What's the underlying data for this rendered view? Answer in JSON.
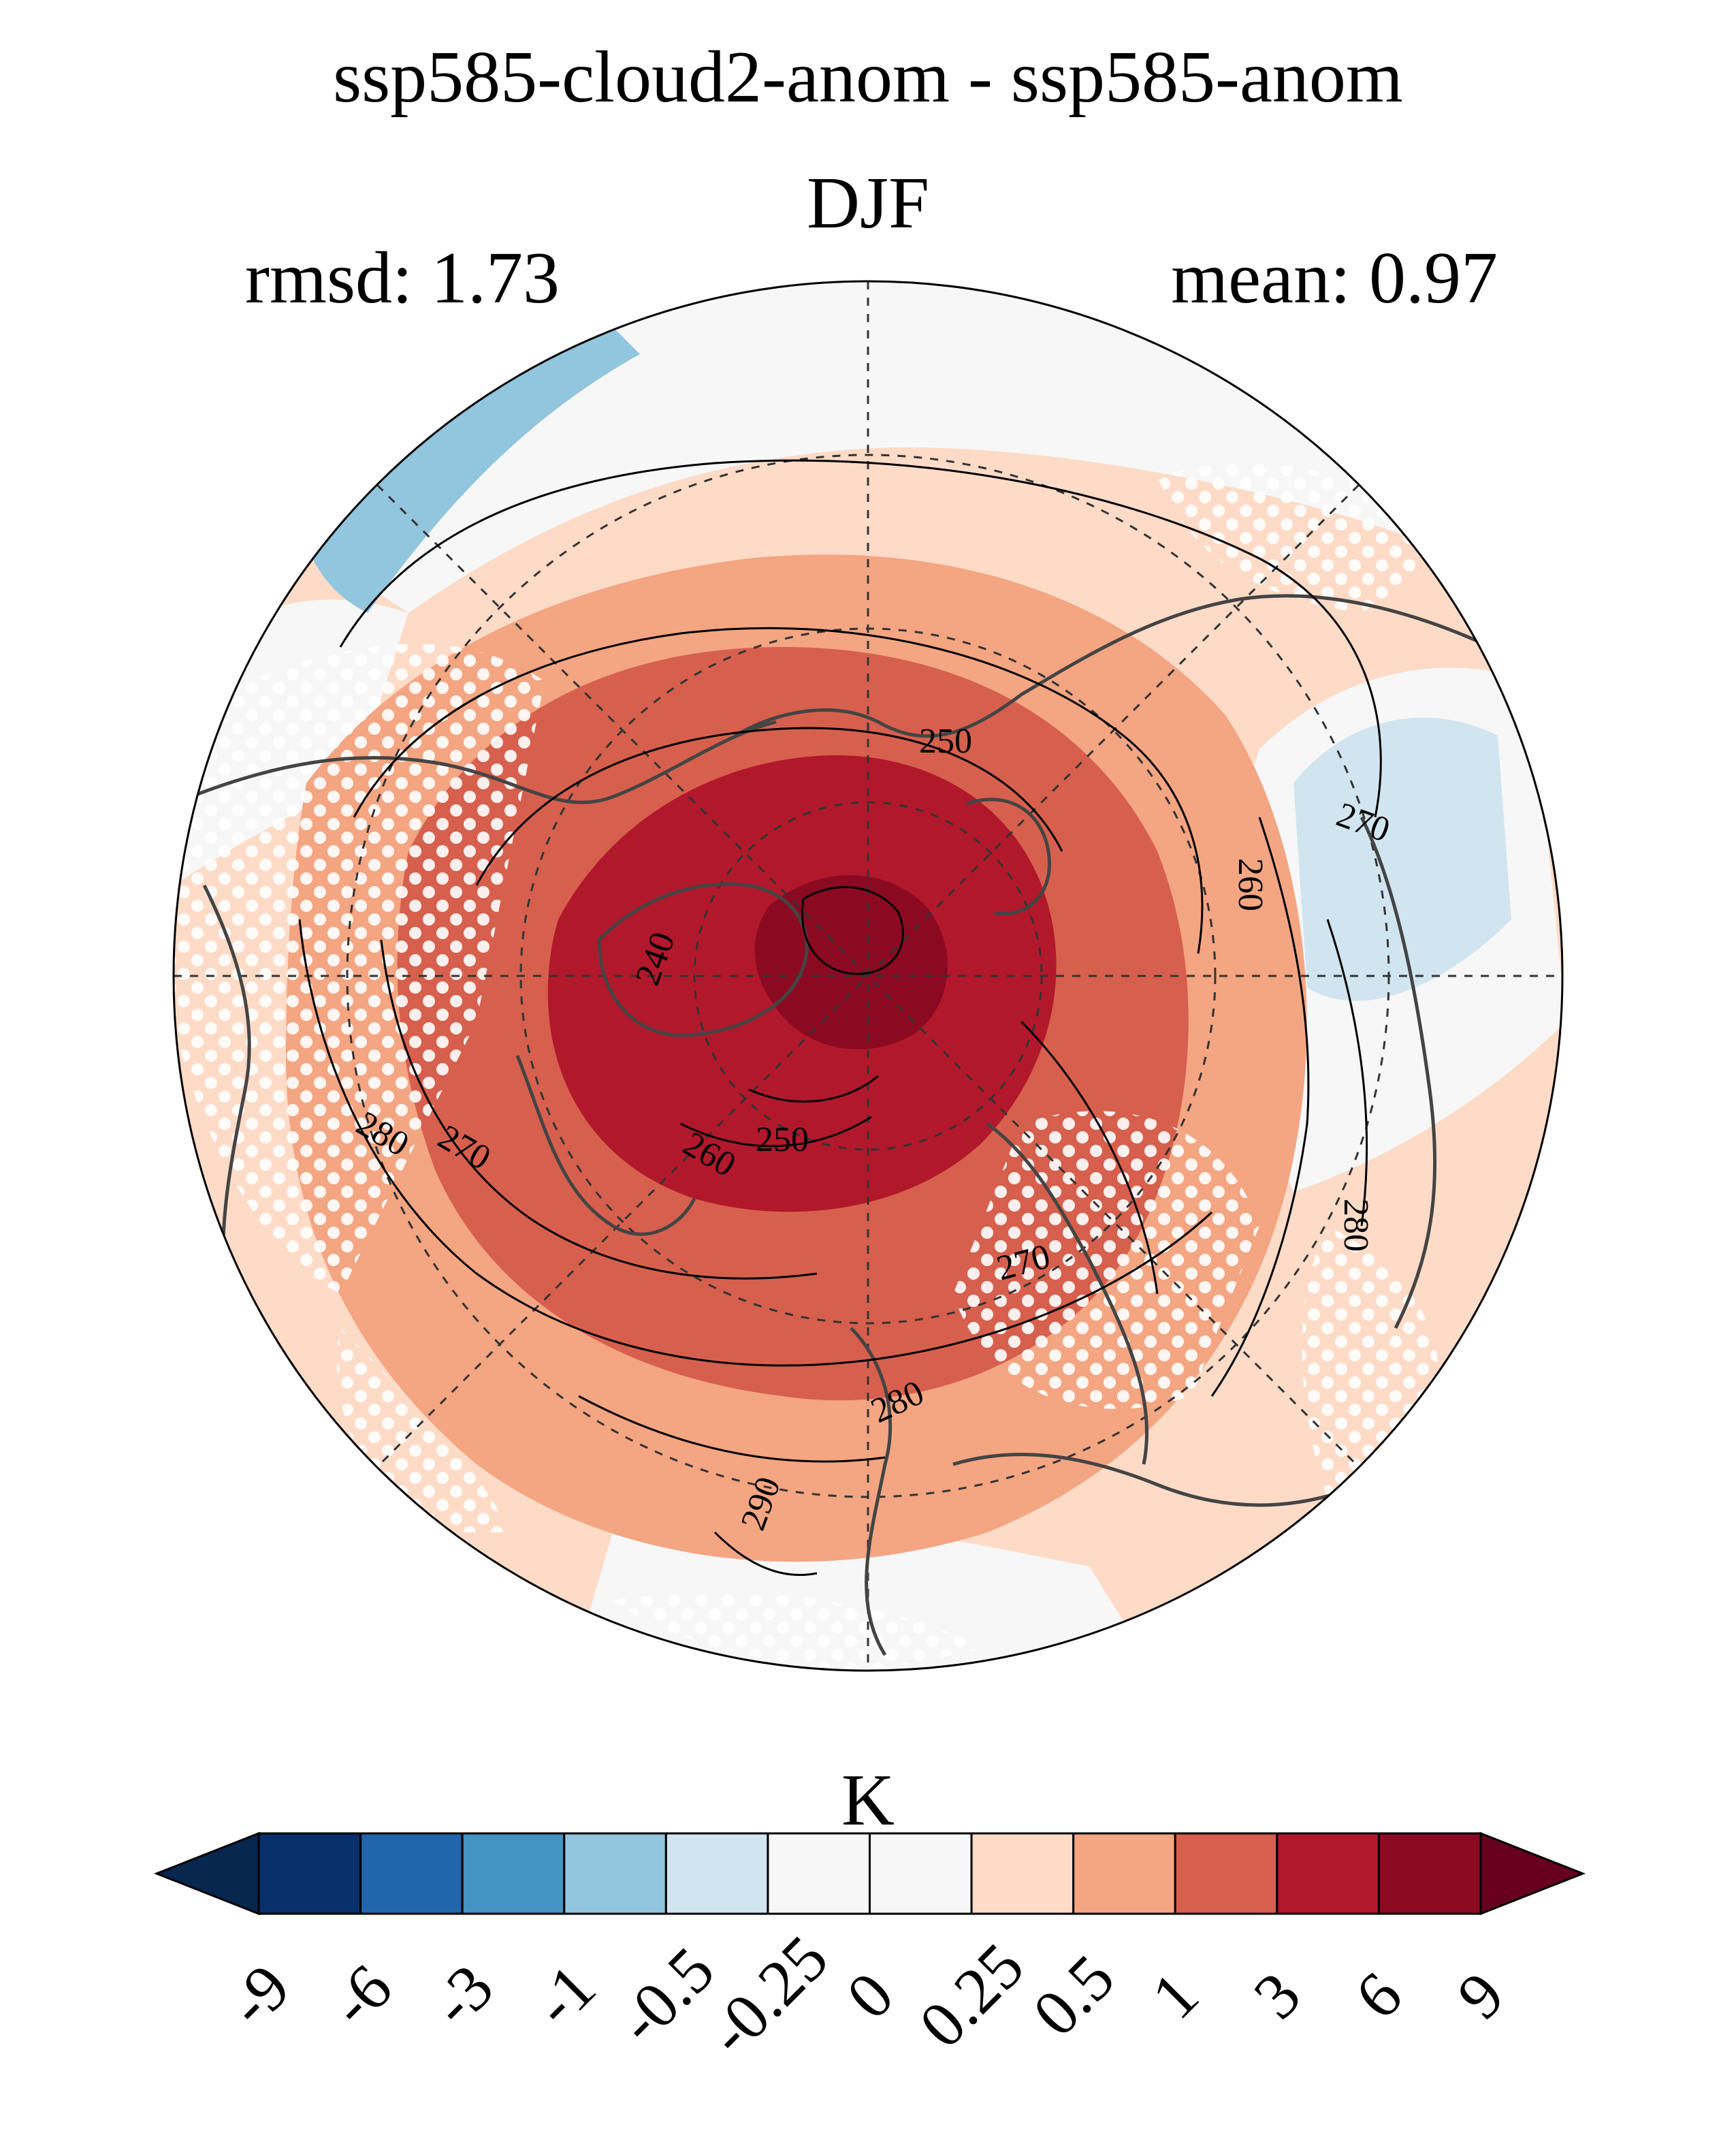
{
  "title": {
    "line1": "ssp585-cloud2-anom - ssp585-anom",
    "line2": "DJF"
  },
  "stats": {
    "rmsd": "rmsd: 1.73",
    "mean": "mean: 0.97"
  },
  "map": {
    "projection": "north-polar-stereographic",
    "contour_labels": [
      {
        "id": "c250a",
        "text": "250"
      },
      {
        "id": "c260a",
        "text": "260"
      },
      {
        "id": "c270a",
        "text": "270"
      },
      {
        "id": "c240",
        "text": "240"
      },
      {
        "id": "c280a",
        "text": "280"
      },
      {
        "id": "c270b",
        "text": "270"
      },
      {
        "id": "c260b",
        "text": "260"
      },
      {
        "id": "c250b",
        "text": "250"
      },
      {
        "id": "c280b",
        "text": "280"
      },
      {
        "id": "c270c",
        "text": "270"
      },
      {
        "id": "c280c",
        "text": "280"
      },
      {
        "id": "c290",
        "text": "290"
      }
    ],
    "stippling": "white dots mark non-significant areas"
  },
  "colorbar": {
    "unit": "K",
    "ticks": [
      "-9",
      "-6",
      "-3",
      "-1",
      "-0.5",
      "-0.25",
      "0",
      "0.25",
      "0.5",
      "1",
      "3",
      "6",
      "9"
    ],
    "colors": [
      "#08274f",
      "#08306b",
      "#2166ac",
      "#4393c3",
      "#92c5de",
      "#d1e5f0",
      "#f7f7f7",
      "#f7f7f7",
      "#fddbc7",
      "#f4a582",
      "#d6604d",
      "#b2182b",
      "#8b0a22",
      "#67001f"
    ],
    "extend": "both"
  }
}
